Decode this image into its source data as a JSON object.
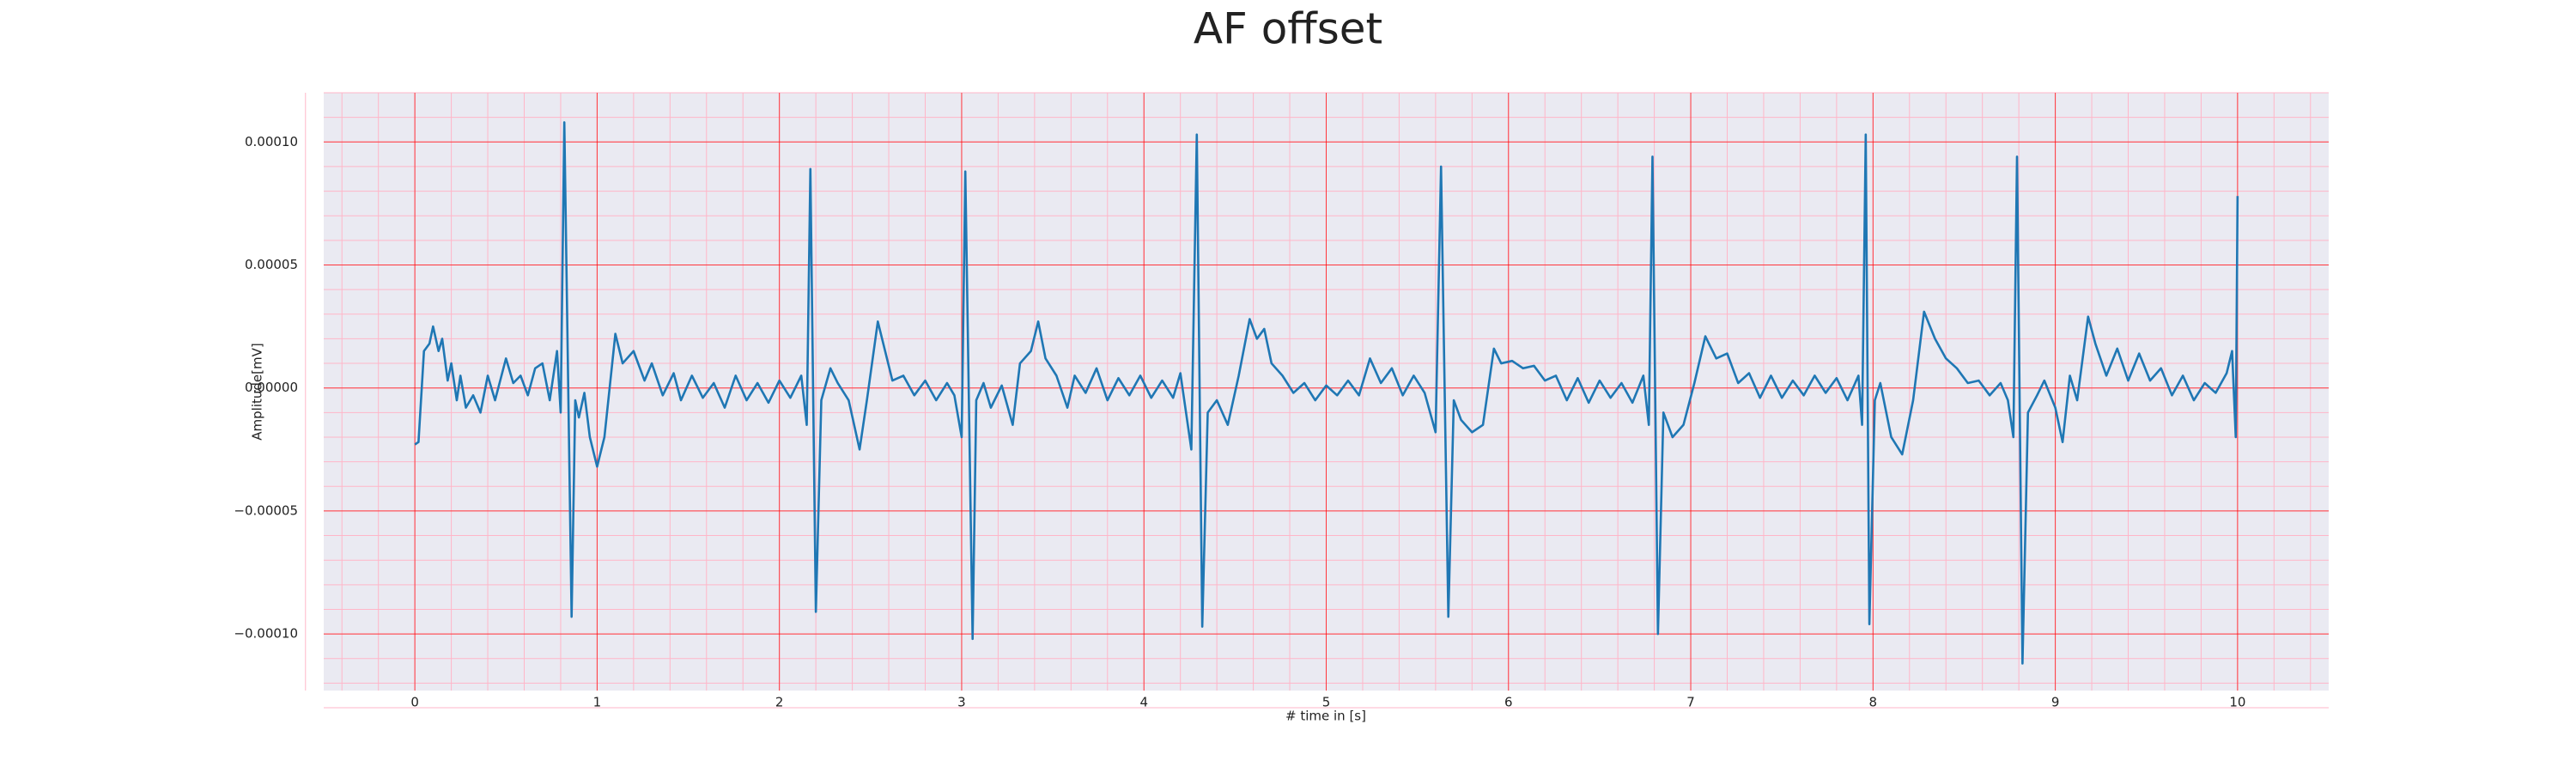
{
  "chart_data": {
    "type": "line",
    "title": "AF offset",
    "xlabel": "# time in [s]",
    "ylabel": "Amplitude[mV]",
    "x": [
      0,
      0.02,
      0.05,
      0.08,
      0.1,
      0.13,
      0.15,
      0.18,
      0.2,
      0.23,
      0.25,
      0.28,
      0.32,
      0.36,
      0.4,
      0.44,
      0.5,
      0.54,
      0.58,
      0.62,
      0.66,
      0.7,
      0.74,
      0.78,
      0.8,
      0.82,
      0.86,
      0.88,
      0.9,
      0.93,
      0.96,
      1.0,
      1.04,
      1.1,
      1.14,
      1.2,
      1.26,
      1.3,
      1.36,
      1.42,
      1.46,
      1.52,
      1.58,
      1.64,
      1.7,
      1.76,
      1.82,
      1.88,
      1.94,
      2.0,
      2.06,
      2.12,
      2.15,
      2.17,
      2.2,
      2.23,
      2.28,
      2.32,
      2.38,
      2.44,
      2.48,
      2.54,
      2.58,
      2.62,
      2.68,
      2.74,
      2.8,
      2.86,
      2.92,
      2.96,
      3.0,
      3.02,
      3.06,
      3.08,
      3.12,
      3.16,
      3.22,
      3.28,
      3.32,
      3.38,
      3.42,
      3.46,
      3.52,
      3.58,
      3.62,
      3.68,
      3.74,
      3.8,
      3.86,
      3.92,
      3.98,
      4.04,
      4.1,
      4.16,
      4.2,
      4.26,
      4.29,
      4.32,
      4.35,
      4.4,
      4.46,
      4.52,
      4.58,
      4.62,
      4.66,
      4.7,
      4.76,
      4.82,
      4.88,
      4.94,
      5.0,
      5.06,
      5.12,
      5.18,
      5.24,
      5.3,
      5.36,
      5.42,
      5.48,
      5.54,
      5.6,
      5.63,
      5.67,
      5.7,
      5.74,
      5.8,
      5.86,
      5.92,
      5.96,
      6.02,
      6.08,
      6.14,
      6.2,
      6.26,
      6.32,
      6.38,
      6.44,
      6.5,
      6.56,
      6.62,
      6.68,
      6.74,
      6.77,
      6.79,
      6.82,
      6.85,
      6.9,
      6.96,
      7.02,
      7.08,
      7.14,
      7.2,
      7.26,
      7.32,
      7.38,
      7.44,
      7.5,
      7.56,
      7.62,
      7.68,
      7.74,
      7.8,
      7.86,
      7.92,
      7.94,
      7.96,
      7.98,
      8.01,
      8.04,
      8.1,
      8.16,
      8.22,
      8.28,
      8.34,
      8.4,
      8.46,
      8.52,
      8.58,
      8.64,
      8.7,
      8.74,
      8.77,
      8.79,
      8.82,
      8.85,
      8.9,
      8.94,
      9.0,
      9.04,
      9.08,
      9.12,
      9.18,
      9.22,
      9.28,
      9.34,
      9.4,
      9.46,
      9.52,
      9.58,
      9.64,
      9.7,
      9.76,
      9.82,
      9.88,
      9.94,
      9.97,
      9.99,
      10.0
    ],
    "values": [
      -2.3e-05,
      -2.2e-05,
      1.5e-05,
      1.8e-05,
      2.5e-05,
      1.5e-05,
      2e-05,
      3e-06,
      1e-05,
      -5e-06,
      5e-06,
      -8e-06,
      -3e-06,
      -1e-05,
      5e-06,
      -5e-06,
      1.2e-05,
      2e-06,
      5e-06,
      -3e-06,
      8e-06,
      1e-05,
      -5e-06,
      1.5e-05,
      -1e-05,
      0.000108,
      -9.3e-05,
      -5e-06,
      -1.2e-05,
      -2e-06,
      -2e-05,
      -3.2e-05,
      -2e-05,
      2.2e-05,
      1e-05,
      1.5e-05,
      3e-06,
      1e-05,
      -3e-06,
      6e-06,
      -5e-06,
      5e-06,
      -4e-06,
      2e-06,
      -8e-06,
      5e-06,
      -5e-06,
      2e-06,
      -6e-06,
      3e-06,
      -4e-06,
      5e-06,
      -1.5e-05,
      8.9e-05,
      -9.1e-05,
      -5e-06,
      8e-06,
      2e-06,
      -5e-06,
      -2.5e-05,
      -5e-06,
      2.7e-05,
      1.5e-05,
      3e-06,
      5e-06,
      -3e-06,
      3e-06,
      -5e-06,
      2e-06,
      -3e-06,
      -2e-05,
      8.8e-05,
      -0.000102,
      -5e-06,
      2e-06,
      -8e-06,
      1e-06,
      -1.5e-05,
      1e-05,
      1.5e-05,
      2.7e-05,
      1.2e-05,
      5e-06,
      -8e-06,
      5e-06,
      -2e-06,
      8e-06,
      -5e-06,
      4e-06,
      -3e-06,
      5e-06,
      -4e-06,
      3e-06,
      -4e-06,
      6e-06,
      -2.5e-05,
      0.000103,
      -9.7e-05,
      -1e-05,
      -5e-06,
      -1.5e-05,
      5e-06,
      2.8e-05,
      2e-05,
      2.4e-05,
      1e-05,
      5e-06,
      -2e-06,
      2e-06,
      -5e-06,
      1e-06,
      -3e-06,
      3e-06,
      -3e-06,
      1.2e-05,
      2e-06,
      8e-06,
      -3e-06,
      5e-06,
      -2e-06,
      -1.8e-05,
      9e-05,
      -9.3e-05,
      -5e-06,
      -1.3e-05,
      -1.8e-05,
      -1.5e-05,
      1.6e-05,
      1e-05,
      1.1e-05,
      8e-06,
      9e-06,
      3e-06,
      5e-06,
      -5e-06,
      4e-06,
      -6e-06,
      3e-06,
      -4e-06,
      2e-06,
      -6e-06,
      5e-06,
      -1.5e-05,
      9.4e-05,
      -0.0001,
      -1e-05,
      -2e-05,
      -1.5e-05,
      2e-06,
      2.1e-05,
      1.2e-05,
      1.4e-05,
      2e-06,
      6e-06,
      -4e-06,
      5e-06,
      -4e-06,
      3e-06,
      -3e-06,
      5e-06,
      -2e-06,
      4e-06,
      -5e-06,
      5e-06,
      -1.5e-05,
      0.000103,
      -9.6e-05,
      -5e-06,
      2e-06,
      -2e-05,
      -2.7e-05,
      -5e-06,
      3.1e-05,
      2e-05,
      1.2e-05,
      8e-06,
      2e-06,
      3e-06,
      -3e-06,
      2e-06,
      -5e-06,
      -2e-05,
      9.4e-05,
      -0.000112,
      -1e-05,
      -3e-06,
      3e-06,
      -8e-06,
      -2.2e-05,
      5e-06,
      -5e-06,
      2.9e-05,
      1.8e-05,
      5e-06,
      1.6e-05,
      3e-06,
      1.4e-05,
      3e-06,
      8e-06,
      -3e-06,
      5e-06,
      -5e-06,
      2e-06,
      -2e-06,
      6e-06,
      1.5e-05,
      -2e-05,
      7.8e-05
    ],
    "color": "#1f77b4",
    "xlim": [
      -0.5,
      10.5
    ],
    "xticks": [
      0,
      1,
      2,
      3,
      4,
      5,
      6,
      7,
      8,
      9,
      10
    ],
    "ylim": [
      -0.000123,
      0.00012
    ],
    "yticks": [
      {
        "value": -0.0001,
        "label": "−0.00010"
      },
      {
        "value": -5e-05,
        "label": "−0.00005"
      },
      {
        "value": 0,
        "label": "0.00000"
      },
      {
        "value": 5e-05,
        "label": "0.00005"
      },
      {
        "value": 0.0001,
        "label": "0.00010"
      }
    ],
    "grid": true,
    "grid_color": "#ff0000",
    "minor_grid": true,
    "minor_divisions": 5,
    "minor_grid_color": "#ffb6c8",
    "background": "#eaeaf2"
  }
}
